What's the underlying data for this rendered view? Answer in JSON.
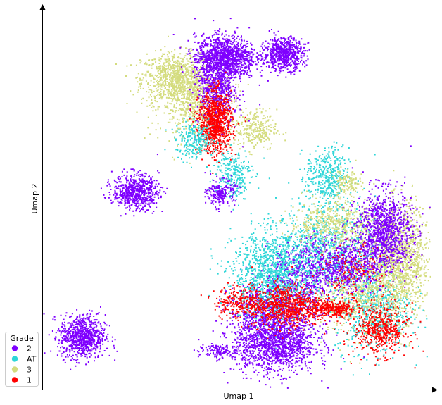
{
  "chart_data": {
    "type": "scatter",
    "title": "",
    "xlabel": "Umap 1",
    "ylabel": "Umap 2",
    "xlim": [
      0,
      100
    ],
    "ylim": [
      0,
      100
    ],
    "ticks": false,
    "grid": false,
    "legend": {
      "title": "Grade",
      "placement": "bottom-left",
      "entries": [
        {
          "label": "2",
          "color": "#7f00ff"
        },
        {
          "label": "AT",
          "color": "#2ed6d8"
        },
        {
          "label": "3",
          "color": "#d4dc7e"
        },
        {
          "label": "1",
          "color": "#ff0000"
        }
      ]
    },
    "clusters": [
      {
        "series": "3",
        "cx": 34.0,
        "cy": 84.0,
        "sx": 4.5,
        "sy": 3.6,
        "n": 900
      },
      {
        "series": "3",
        "cx": 40.0,
        "cy": 76.5,
        "sx": 5.0,
        "sy": 5.0,
        "n": 600
      },
      {
        "series": "3",
        "cx": 55.0,
        "cy": 70.0,
        "sx": 2.8,
        "sy": 2.8,
        "n": 250
      },
      {
        "series": "2",
        "cx": 47.0,
        "cy": 90.0,
        "sx": 4.0,
        "sy": 3.0,
        "n": 1100
      },
      {
        "series": "2",
        "cx": 45.0,
        "cy": 82.0,
        "sx": 2.6,
        "sy": 5.5,
        "n": 700
      },
      {
        "series": "2",
        "cx": 62.5,
        "cy": 91.0,
        "sx": 2.6,
        "sy": 2.2,
        "n": 650
      },
      {
        "series": "1",
        "cx": 44.5,
        "cy": 72.0,
        "sx": 2.2,
        "sy": 4.2,
        "n": 900
      },
      {
        "series": "AT",
        "cx": 39.0,
        "cy": 67.0,
        "sx": 2.5,
        "sy": 2.5,
        "n": 250
      },
      {
        "series": "AT",
        "cx": 49.0,
        "cy": 58.0,
        "sx": 2.5,
        "sy": 3.5,
        "n": 250
      },
      {
        "series": "2",
        "cx": 46.0,
        "cy": 52.5,
        "sx": 1.8,
        "sy": 1.8,
        "n": 200
      },
      {
        "series": "2",
        "cx": 23.5,
        "cy": 53.0,
        "sx": 3.0,
        "sy": 2.4,
        "n": 650
      },
      {
        "series": "2",
        "cx": 9.5,
        "cy": 13.0,
        "sx": 3.0,
        "sy": 3.0,
        "n": 800
      },
      {
        "series": "2",
        "cx": 45.0,
        "cy": 9.0,
        "sx": 2.5,
        "sy": 0.9,
        "n": 120
      },
      {
        "series": "2",
        "cx": 60.0,
        "cy": 11.0,
        "sx": 5.5,
        "sy": 4.0,
        "n": 1400
      },
      {
        "series": "2",
        "cx": 60.0,
        "cy": 20.0,
        "sx": 6.0,
        "sy": 4.0,
        "n": 800
      },
      {
        "series": "AT",
        "cx": 60.0,
        "cy": 30.0,
        "sx": 5.5,
        "sy": 6.0,
        "n": 1300
      },
      {
        "series": "AT",
        "cx": 74.0,
        "cy": 37.5,
        "sx": 6.5,
        "sy": 6.0,
        "n": 900
      },
      {
        "series": "AT",
        "cx": 74.0,
        "cy": 57.0,
        "sx": 2.8,
        "sy": 4.0,
        "n": 400
      },
      {
        "series": "AT",
        "cx": 86.0,
        "cy": 20.5,
        "sx": 5.0,
        "sy": 6.0,
        "n": 700
      },
      {
        "series": "3",
        "cx": 93.0,
        "cy": 34.0,
        "sx": 4.0,
        "sy": 7.5,
        "n": 1300
      },
      {
        "series": "3",
        "cx": 76.0,
        "cy": 44.0,
        "sx": 6.0,
        "sy": 3.0,
        "n": 500
      },
      {
        "series": "3",
        "cx": 82.0,
        "cy": 26.0,
        "sx": 6.0,
        "sy": 6.0,
        "n": 600
      },
      {
        "series": "3",
        "cx": 79.0,
        "cy": 55.0,
        "sx": 2.0,
        "sy": 2.0,
        "n": 150
      },
      {
        "series": "2",
        "cx": 89.0,
        "cy": 42.0,
        "sx": 3.6,
        "sy": 5.5,
        "n": 1100
      },
      {
        "series": "2",
        "cx": 79.0,
        "cy": 33.0,
        "sx": 4.0,
        "sy": 3.5,
        "n": 500
      },
      {
        "series": "2",
        "cx": 68.0,
        "cy": 30.0,
        "sx": 4.0,
        "sy": 5.0,
        "n": 400
      },
      {
        "series": "1",
        "cx": 63.0,
        "cy": 21.5,
        "sx": 4.5,
        "sy": 3.0,
        "n": 700
      },
      {
        "series": "1",
        "cx": 51.0,
        "cy": 22.5,
        "sx": 3.5,
        "sy": 2.2,
        "n": 250
      },
      {
        "series": "1",
        "cx": 75.5,
        "cy": 20.5,
        "sx": 3.0,
        "sy": 1.2,
        "n": 300
      },
      {
        "series": "1",
        "cx": 88.0,
        "cy": 15.0,
        "sx": 3.5,
        "sy": 3.5,
        "n": 500
      },
      {
        "series": "1",
        "cx": 81.0,
        "cy": 30.0,
        "sx": 4.0,
        "sy": 4.0,
        "n": 150
      }
    ]
  }
}
